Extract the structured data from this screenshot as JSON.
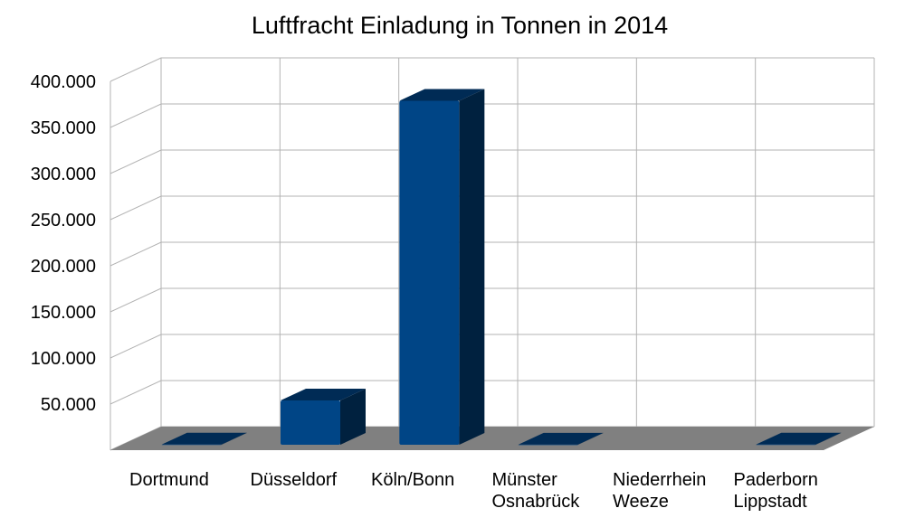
{
  "chart_data": {
    "type": "bar",
    "title": "Luftfracht Einladung in Tonnen in 2014",
    "xlabel": "",
    "ylabel": "",
    "categories": [
      [
        "Dortmund"
      ],
      [
        "Düsseldorf"
      ],
      [
        "Köln/Bonn"
      ],
      [
        "Münster",
        "Osnabrück"
      ],
      [
        "Niederrhein",
        "Weeze"
      ],
      [
        "Paderborn",
        "Lippstadt"
      ]
    ],
    "series": [
      {
        "values": [
          200,
          48000,
          373000,
          150,
          0,
          200
        ],
        "color": "#004586"
      }
    ],
    "ylim": [
      0,
      400000
    ],
    "yticks": [
      "50.000",
      "100.000",
      "150.000",
      "200.000",
      "250.000",
      "300.000",
      "350.000",
      "400.000"
    ],
    "ytick_values": [
      50000,
      100000,
      150000,
      200000,
      250000,
      300000,
      350000,
      400000
    ],
    "grid": true,
    "three_d": true,
    "floor_color": "#808080",
    "legend": "none"
  }
}
